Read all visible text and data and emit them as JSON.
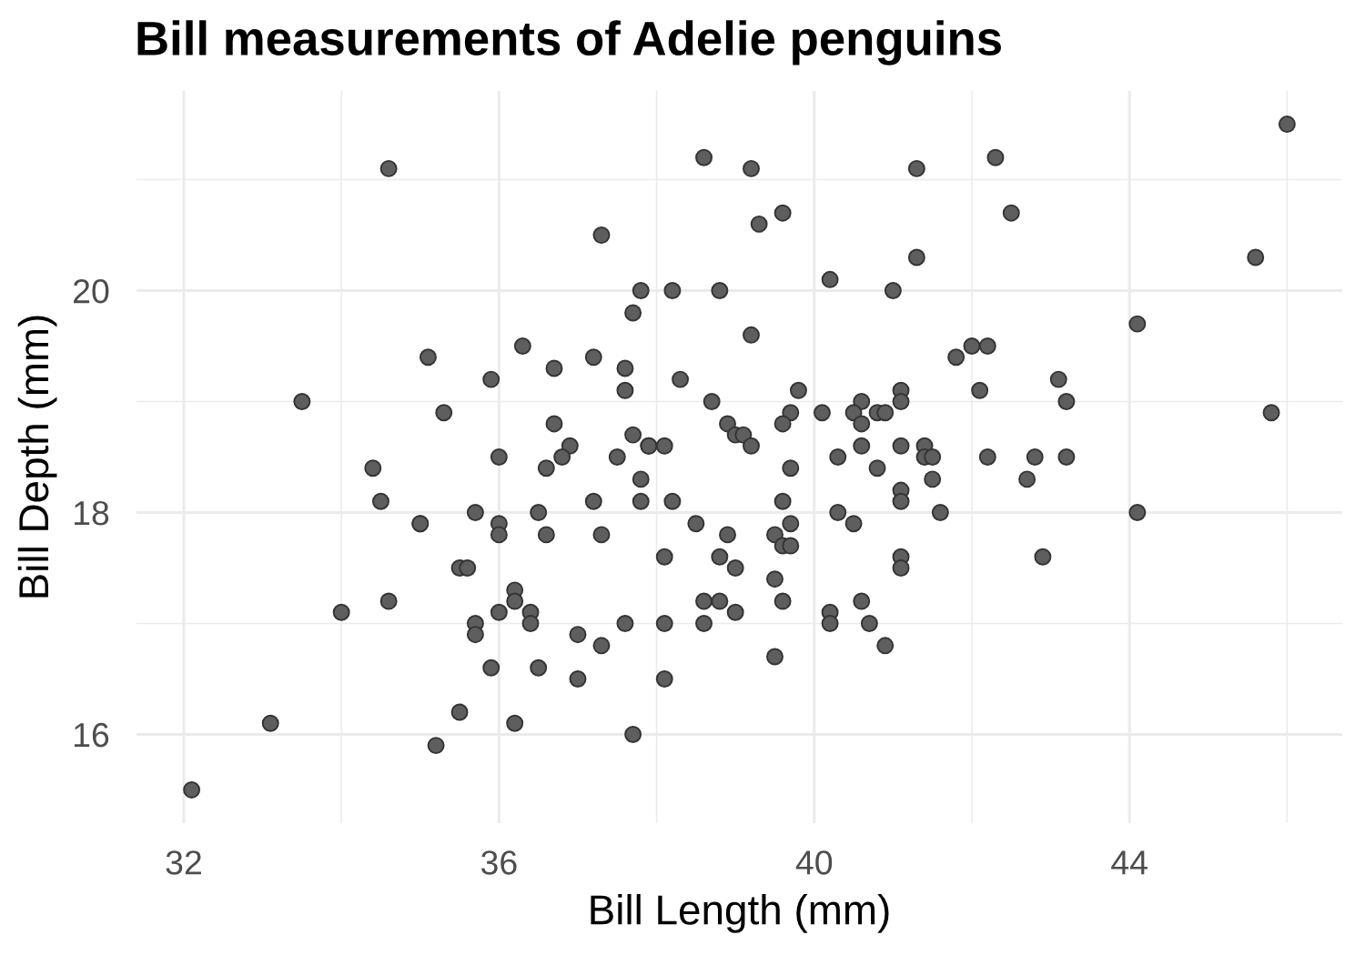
{
  "chart_data": {
    "type": "scatter",
    "title": "Bill measurements of Adelie penguins",
    "xlabel": "Bill Length (mm)",
    "ylabel": "Bill Depth (mm)",
    "x": [
      46.0,
      34.6,
      38.6,
      39.2,
      41.3,
      42.3,
      42.5,
      39.6,
      39.3,
      37.3,
      41.3,
      45.6,
      40.2,
      37.8,
      38.2,
      38.8,
      41.0,
      37.7,
      44.1,
      39.2,
      36.3,
      42.0,
      42.2,
      35.1,
      37.2,
      41.8,
      36.7,
      37.6,
      35.9,
      38.3,
      43.1,
      37.6,
      39.8,
      41.1,
      42.1,
      33.5,
      38.7,
      40.6,
      41.1,
      43.2,
      35.3,
      39.7,
      40.1,
      40.5,
      40.8,
      40.9,
      45.8,
      36.7,
      38.9,
      39.6,
      40.6,
      37.7,
      39.0,
      39.1,
      36.9,
      37.9,
      37.9,
      38.1,
      39.2,
      40.6,
      41.1,
      41.4,
      36.0,
      36.8,
      37.5,
      40.3,
      41.4,
      41.5,
      42.2,
      42.8,
      43.2,
      34.4,
      36.6,
      39.7,
      40.8,
      37.8,
      41.5,
      42.7,
      41.1,
      34.5,
      37.2,
      37.8,
      38.2,
      39.6,
      41.1,
      35.7,
      36.5,
      40.3,
      41.6,
      44.1,
      35.0,
      35.0,
      36.0,
      38.5,
      39.7,
      40.5,
      36.0,
      36.6,
      37.3,
      38.9,
      39.5,
      39.6,
      39.7,
      38.1,
      38.8,
      41.1,
      42.9,
      35.5,
      35.6,
      39.0,
      41.1,
      39.5,
      36.2,
      34.6,
      36.2,
      38.6,
      38.8,
      39.6,
      40.6,
      34.0,
      36.0,
      36.4,
      39.0,
      40.2,
      35.7,
      36.4,
      37.6,
      38.1,
      38.6,
      40.2,
      40.7,
      35.7,
      37.0,
      37.3,
      40.9,
      39.5,
      35.9,
      36.5,
      37.0,
      38.1,
      35.5,
      33.1,
      36.2,
      37.7,
      35.2,
      32.1
    ],
    "values": [
      21.5,
      21.1,
      21.2,
      21.1,
      21.1,
      21.2,
      20.7,
      20.7,
      20.6,
      20.5,
      20.3,
      20.3,
      20.1,
      20.0,
      20.0,
      20.0,
      20.0,
      19.8,
      19.7,
      19.6,
      19.5,
      19.5,
      19.5,
      19.4,
      19.4,
      19.4,
      19.3,
      19.3,
      19.2,
      19.2,
      19.2,
      19.1,
      19.1,
      19.1,
      19.1,
      19.0,
      19.0,
      19.0,
      19.0,
      19.0,
      18.9,
      18.9,
      18.9,
      18.9,
      18.9,
      18.9,
      18.9,
      18.8,
      18.8,
      18.8,
      18.8,
      18.7,
      18.7,
      18.7,
      18.6,
      18.6,
      18.6,
      18.6,
      18.6,
      18.6,
      18.6,
      18.6,
      18.5,
      18.5,
      18.5,
      18.5,
      18.5,
      18.5,
      18.5,
      18.5,
      18.5,
      18.4,
      18.4,
      18.4,
      18.4,
      18.3,
      18.3,
      18.3,
      18.2,
      18.1,
      18.1,
      18.1,
      18.1,
      18.1,
      18.1,
      18.0,
      18.0,
      18.0,
      18.0,
      18.0,
      17.9,
      17.9,
      17.9,
      17.9,
      17.9,
      17.9,
      17.8,
      17.8,
      17.8,
      17.8,
      17.8,
      17.7,
      17.7,
      17.6,
      17.6,
      17.6,
      17.6,
      17.5,
      17.5,
      17.5,
      17.5,
      17.4,
      17.3,
      17.2,
      17.2,
      17.2,
      17.2,
      17.2,
      17.2,
      17.1,
      17.1,
      17.1,
      17.1,
      17.1,
      17.0,
      17.0,
      17.0,
      17.0,
      17.0,
      17.0,
      17.0,
      16.9,
      16.9,
      16.8,
      16.8,
      16.7,
      16.6,
      16.6,
      16.5,
      16.5,
      16.2,
      16.1,
      16.1,
      16.0,
      15.9,
      15.5
    ],
    "color": "#5e5e5e",
    "xlim": [
      31.4,
      46.7
    ],
    "ylim": [
      15.2,
      21.8
    ],
    "xticks": [
      32,
      {
        "value": 34,
        "label": null
      },
      36,
      {
        "value": 38,
        "label": null
      },
      40,
      {
        "value": 42,
        "label": null
      },
      44,
      {
        "value": 46,
        "label": null
      }
    ],
    "yticks": [
      16,
      {
        "value": 17,
        "label": null
      },
      18,
      {
        "value": 19,
        "label": null
      },
      20,
      {
        "value": 21,
        "label": null
      }
    ],
    "grid": true,
    "legend": false,
    "marker": "circle"
  }
}
